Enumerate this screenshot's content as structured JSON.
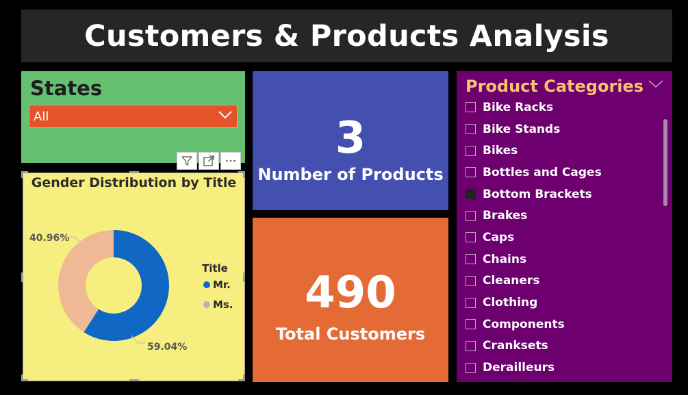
{
  "header": {
    "title": "Customers & Products Analysis"
  },
  "states_slicer": {
    "title": "States",
    "selected": "All"
  },
  "visual_toolbar": {
    "filter_icon": "filter-icon",
    "focus_icon": "focus-mode-icon",
    "more_icon": "more-options-icon"
  },
  "gender_chart": {
    "title": "Gender Distribution by Title",
    "legend_title": "Title",
    "labels": {
      "mr": "59.04%",
      "ms": "40.96%"
    }
  },
  "kpi": {
    "products": {
      "value": "3",
      "label": "Number of Products"
    },
    "customers": {
      "value": "490",
      "label": "Total Customers"
    }
  },
  "categories_slicer": {
    "title": "Product Categories",
    "items": [
      {
        "label": "Bike Racks",
        "selected": false
      },
      {
        "label": "Bike Stands",
        "selected": false
      },
      {
        "label": "Bikes",
        "selected": false
      },
      {
        "label": "Bottles and Cages",
        "selected": false
      },
      {
        "label": "Bottom Brackets",
        "selected": true
      },
      {
        "label": "Brakes",
        "selected": false
      },
      {
        "label": "Caps",
        "selected": false
      },
      {
        "label": "Chains",
        "selected": false
      },
      {
        "label": "Cleaners",
        "selected": false
      },
      {
        "label": "Clothing",
        "selected": false
      },
      {
        "label": "Components",
        "selected": false
      },
      {
        "label": "Cranksets",
        "selected": false
      },
      {
        "label": "Derailleurs",
        "selected": false
      }
    ]
  },
  "colors": {
    "title_bg": "#262626",
    "states_bg": "#66c072",
    "dropdown_bg": "#e5532b",
    "gender_bg": "#f7ee80",
    "products_bg": "#4350b0",
    "customers_bg": "#e56b36",
    "categories_bg": "#6d006e",
    "categories_title": "#f6c46f",
    "mr": "#1168c4",
    "ms": "#efb996",
    "ms_legend": "#b4b4b4"
  },
  "chart_data": {
    "type": "pie",
    "style": "donut",
    "title": "Gender Distribution by Title",
    "legend_title": "Title",
    "legend_position": "right",
    "categories": [
      "Mr.",
      "Ms."
    ],
    "values": [
      59.04,
      40.96
    ],
    "unit": "%",
    "colors": [
      "#1168c4",
      "#efb996"
    ]
  }
}
